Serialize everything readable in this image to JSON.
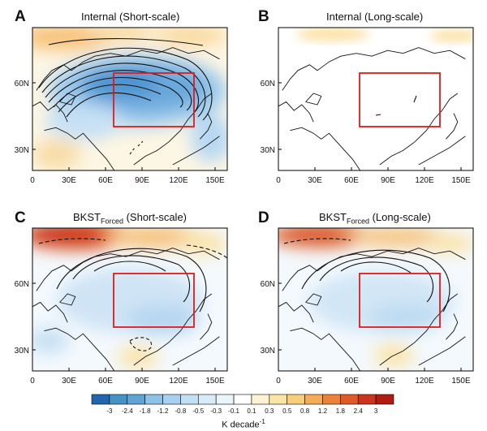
{
  "panels": [
    {
      "letter": "A",
      "title": "Internal (Short-scale)",
      "sub": "",
      "title_after": ""
    },
    {
      "letter": "B",
      "title": "Internal (Long-scale)",
      "sub": "",
      "title_after": ""
    },
    {
      "letter": "C",
      "title": "BKST",
      "sub": "Forced",
      "title_after": " (Short-scale)"
    },
    {
      "letter": "D",
      "title": "BKST",
      "sub": "Forced",
      "title_after": " (Long-scale)"
    }
  ],
  "lat_labels": [
    "60N",
    "30N"
  ],
  "lon_labels": [
    "0",
    "30E",
    "60E",
    "90E",
    "120E",
    "150E"
  ],
  "colorbar": {
    "labels": [
      "-3",
      "-2.4",
      "-1.8",
      "-1.2",
      "-0.8",
      "-0.5",
      "-0.3",
      "-0.1",
      "0.1",
      "0.3",
      "0.5",
      "0.8",
      "1.2",
      "1.8",
      "2.4",
      "3"
    ],
    "colors": [
      "#2166ac",
      "#4393c3",
      "#5fa4d4",
      "#8ec1e6",
      "#a8d1ef",
      "#c2dff4",
      "#d9ebf8",
      "#ebf4fb",
      "#ffffff",
      "#fdf3d2",
      "#fbe5a6",
      "#f7cf7a",
      "#f4ad56",
      "#ec8239",
      "#e05a27",
      "#c8341c",
      "#b01c13"
    ],
    "label": "K decade",
    "label_sup": "-1"
  }
}
